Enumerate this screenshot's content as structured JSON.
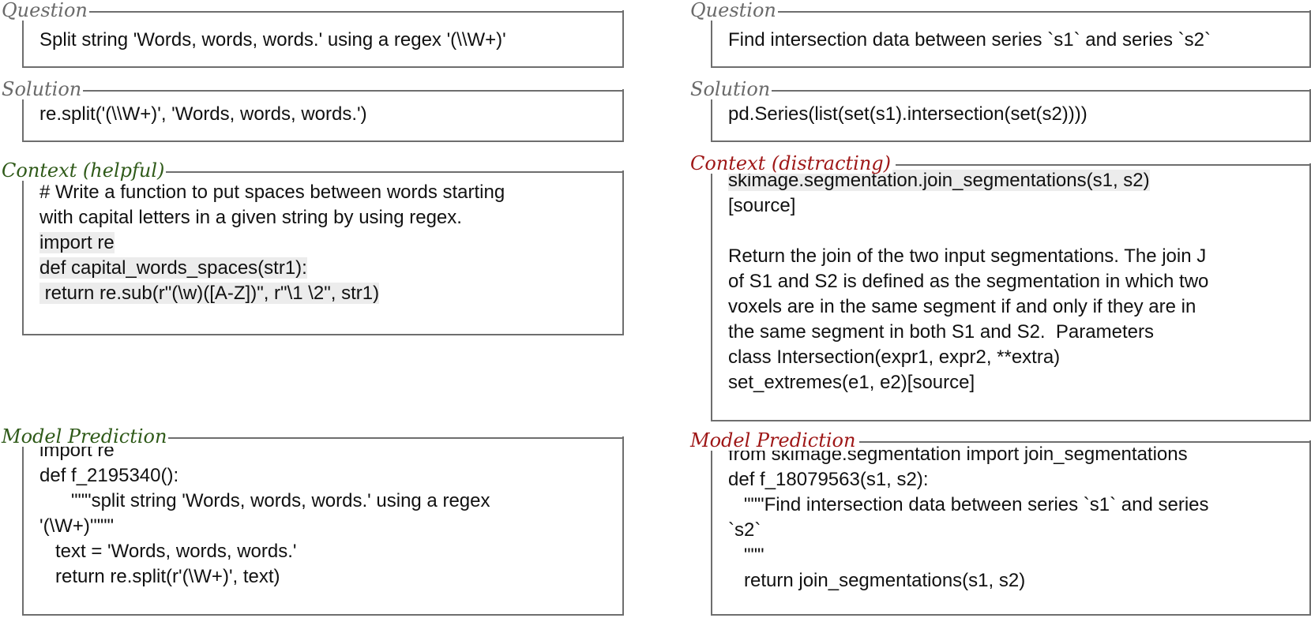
{
  "left": {
    "question": {
      "label": "Question",
      "text": "Split string 'Words, words, words.' using a regex '(\\\\W+)'"
    },
    "solution": {
      "label": "Solution",
      "text": "re.split('(\\\\W+)', 'Words, words, words.')"
    },
    "context": {
      "label": "Context (helpful)",
      "lines": [
        "# Write a function to put spaces between words starting",
        "with capital letters in a given string by using regex.",
        "import re",
        "def capital_words_spaces(str1):",
        " return re.sub(r\"(\\w)([A-Z])\", r\"\\1 \\2\", str1)"
      ]
    },
    "prediction": {
      "label": "Model Prediction",
      "lines": [
        "import re",
        "def f_2195340():",
        "      \"\"\"split string 'Words, words, words.' using a regex",
        "'(\\W+)'\"\"\"",
        "   text = 'Words, words, words.'",
        "   return re.split(r'(\\W+)', text)"
      ]
    }
  },
  "right": {
    "question": {
      "label": "Question",
      "text": "Find intersection data between series `s1` and series `s2`"
    },
    "solution": {
      "label": "Solution",
      "text": "pd.Series(list(set(s1).intersection(set(s2))))"
    },
    "context": {
      "label": "Context (distracting)",
      "lines": [
        "skimage.segmentation.join_segmentations(s1, s2)",
        "[source]",
        "",
        "Return the join of the two input segmentations. The join J",
        "of S1 and S2 is defined as the segmentation in which two",
        "voxels are in the same segment if and only if they are in",
        "the same segment in both S1 and S2.  Parameters",
        "class Intersection(expr1, expr2, **extra)",
        "set_extremes(e1, e2)[source]"
      ]
    },
    "prediction": {
      "label": "Model Prediction",
      "lines": [
        "from skimage.segmentation import join_segmentations",
        "def f_18079563(s1, s2):",
        "   \"\"\"Find intersection data between series `s1` and series",
        "`s2`",
        "   \"\"\"",
        "   return join_segmentations(s1, s2)"
      ]
    }
  },
  "colors": {
    "label_gray": "#6a6a6a",
    "label_green": "#2f5a19",
    "label_red": "#9e1616",
    "border": "#6e6e6e",
    "highlight": "#ececec"
  }
}
